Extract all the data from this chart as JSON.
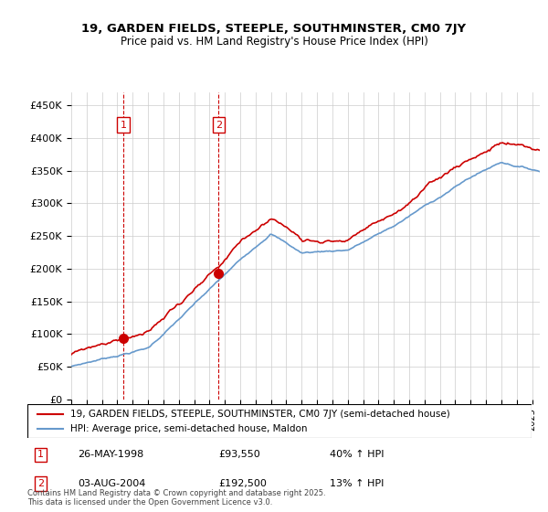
{
  "title": "19, GARDEN FIELDS, STEEPLE, SOUTHMINSTER, CM0 7JY",
  "subtitle": "Price paid vs. HM Land Registry's House Price Index (HPI)",
  "legend_line1": "19, GARDEN FIELDS, STEEPLE, SOUTHMINSTER, CM0 7JY (semi-detached house)",
  "legend_line2": "HPI: Average price, semi-detached house, Maldon",
  "footnote": "Contains HM Land Registry data © Crown copyright and database right 2025.\nThis data is licensed under the Open Government Licence v3.0.",
  "sale1_label": "1",
  "sale1_date": "26-MAY-1998",
  "sale1_price": "£93,550",
  "sale1_hpi": "40% ↑ HPI",
  "sale2_label": "2",
  "sale2_date": "03-AUG-2004",
  "sale2_price": "£192,500",
  "sale2_hpi": "13% ↑ HPI",
  "marker1_x": 1998.4,
  "marker1_y": 93550,
  "marker2_x": 2004.6,
  "marker2_y": 192500,
  "vline1_x": 1998.4,
  "vline2_x": 2004.6,
  "ylim": [
    0,
    470000
  ],
  "xlim_start": 1995,
  "xlim_end": 2025.5,
  "hpi_color": "#6699cc",
  "price_color": "#cc0000",
  "bg_color": "#ffffff",
  "grid_color": "#cccccc"
}
